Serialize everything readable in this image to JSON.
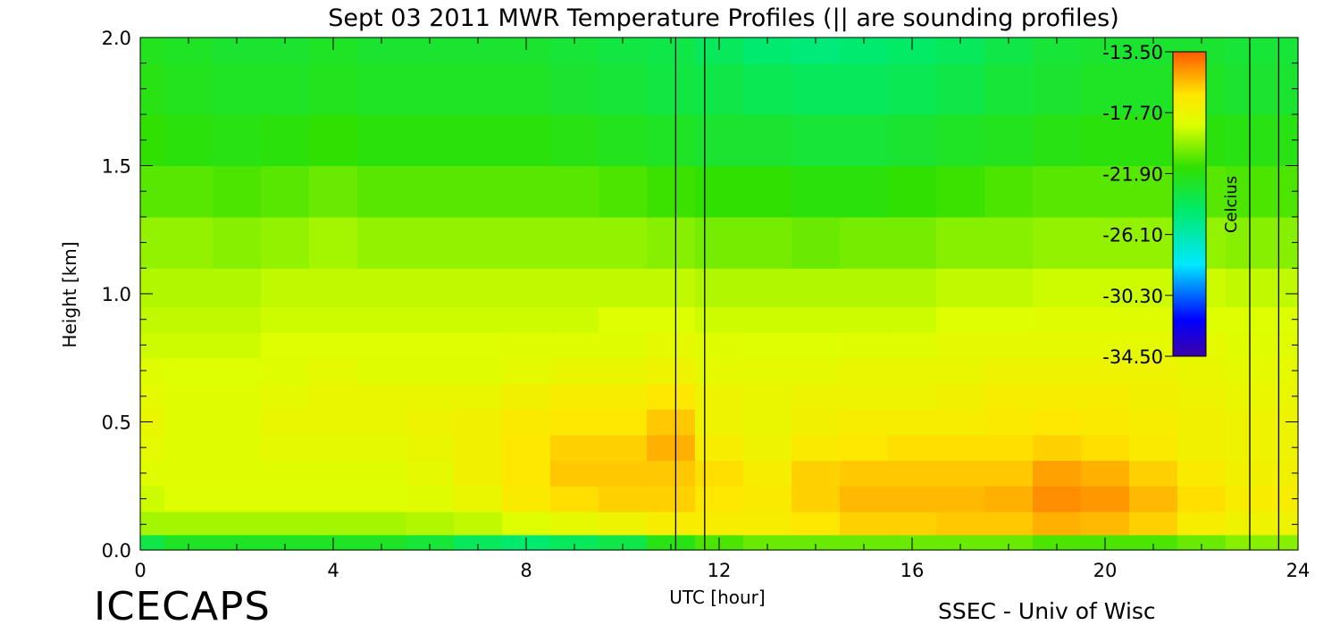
{
  "chart_data": {
    "type": "heatmap",
    "title": "Sept 03 2011 MWR Temperature Profiles (|| are sounding profiles)",
    "xlabel": "UTC [hour]",
    "ylabel": "Height [km]",
    "xlim": [
      0,
      24
    ],
    "ylim": [
      0,
      2.0
    ],
    "x_ticks": [
      "0",
      "4",
      "8",
      "12",
      "16",
      "20",
      "24"
    ],
    "y_ticks": [
      "0.0",
      "0.5",
      "1.0",
      "1.5",
      "2.0"
    ],
    "colorbar": {
      "label": "Celcius",
      "range": [
        -34.5,
        -13.5
      ],
      "ticks": [
        "-13.50",
        "-17.70",
        "-21.90",
        "-26.10",
        "-30.30",
        "-34.50"
      ]
    },
    "sounding_times": [
      11.1,
      11.7,
      23.0,
      23.6
    ],
    "x": [
      0,
      1,
      2,
      3,
      4,
      5,
      6,
      7,
      8,
      9,
      10,
      11,
      12,
      13,
      14,
      15,
      16,
      17,
      18,
      19,
      20,
      21,
      22,
      23
    ],
    "heights": [
      0.02,
      0.1,
      0.2,
      0.3,
      0.4,
      0.5,
      0.6,
      0.7,
      0.8,
      0.9,
      1.0,
      1.2,
      1.4,
      1.6,
      1.8,
      2.0
    ],
    "values": [
      [
        -23.5,
        -22.5,
        -22.5,
        -22.5,
        -22.5,
        -22.5,
        -23.0,
        -24.0,
        -24.5,
        -24.0,
        -23.5,
        -22.0,
        -21.0,
        -20.5,
        -20.5,
        -20.5,
        -20.5,
        -20.5,
        -20.5,
        -21.0,
        -21.0,
        -21.0,
        -20.5,
        -20.0
      ],
      [
        -19.5,
        -19.5,
        -19.5,
        -19.5,
        -19.5,
        -19.5,
        -19.3,
        -19.0,
        -18.5,
        -18.0,
        -17.5,
        -17.0,
        -17.0,
        -17.0,
        -16.5,
        -16.0,
        -16.0,
        -15.8,
        -15.8,
        -15.3,
        -15.5,
        -16.0,
        -17.0,
        -17.5
      ],
      [
        -18.8,
        -18.5,
        -18.5,
        -18.5,
        -18.5,
        -18.5,
        -18.3,
        -17.8,
        -16.8,
        -16.3,
        -16.0,
        -16.0,
        -16.5,
        -16.8,
        -16.0,
        -15.5,
        -15.5,
        -15.5,
        -15.3,
        -14.6,
        -14.8,
        -15.5,
        -16.3,
        -17.0
      ],
      [
        -18.3,
        -18.3,
        -18.3,
        -18.3,
        -18.3,
        -18.3,
        -18.0,
        -17.3,
        -16.5,
        -15.8,
        -15.8,
        -15.8,
        -16.3,
        -17.0,
        -16.0,
        -15.8,
        -15.8,
        -15.8,
        -15.8,
        -15.0,
        -15.3,
        -16.0,
        -16.8,
        -17.3
      ],
      [
        -18.0,
        -18.3,
        -18.3,
        -18.0,
        -18.0,
        -18.0,
        -17.8,
        -17.3,
        -16.5,
        -16.0,
        -16.0,
        -15.3,
        -17.0,
        -17.5,
        -16.8,
        -16.5,
        -16.3,
        -16.3,
        -16.3,
        -16.0,
        -16.3,
        -16.8,
        -17.3,
        -17.5
      ],
      [
        -17.8,
        -18.3,
        -18.3,
        -17.8,
        -17.8,
        -17.8,
        -17.5,
        -17.3,
        -16.8,
        -16.5,
        -16.5,
        -15.8,
        -17.5,
        -17.8,
        -17.3,
        -17.0,
        -17.0,
        -17.0,
        -16.8,
        -16.5,
        -16.8,
        -17.0,
        -17.3,
        -17.5
      ],
      [
        -18.0,
        -18.3,
        -18.3,
        -18.0,
        -17.8,
        -17.8,
        -17.8,
        -17.8,
        -17.3,
        -17.0,
        -17.0,
        -16.5,
        -17.5,
        -17.8,
        -17.5,
        -17.5,
        -17.5,
        -17.3,
        -17.0,
        -17.0,
        -17.0,
        -17.3,
        -17.5,
        -17.8
      ],
      [
        -18.3,
        -18.5,
        -18.5,
        -18.3,
        -18.0,
        -18.3,
        -18.3,
        -18.3,
        -18.0,
        -17.8,
        -17.8,
        -17.5,
        -18.0,
        -18.0,
        -18.0,
        -17.8,
        -17.8,
        -17.8,
        -17.5,
        -17.5,
        -17.5,
        -17.5,
        -17.8,
        -18.0
      ],
      [
        -18.8,
        -18.8,
        -18.8,
        -18.5,
        -18.5,
        -18.5,
        -18.5,
        -18.5,
        -18.3,
        -18.3,
        -18.3,
        -18.0,
        -18.3,
        -18.5,
        -18.5,
        -18.3,
        -18.3,
        -18.0,
        -18.0,
        -18.0,
        -18.0,
        -18.0,
        -18.0,
        -18.3
      ],
      [
        -19.0,
        -19.0,
        -19.0,
        -18.8,
        -18.8,
        -18.8,
        -18.8,
        -18.8,
        -18.8,
        -18.8,
        -18.5,
        -18.5,
        -18.8,
        -18.8,
        -18.8,
        -18.8,
        -18.8,
        -18.5,
        -18.5,
        -18.3,
        -18.3,
        -18.3,
        -18.5,
        -18.5
      ],
      [
        -19.3,
        -19.3,
        -19.3,
        -19.0,
        -19.0,
        -19.0,
        -19.0,
        -19.0,
        -19.0,
        -19.0,
        -19.0,
        -19.0,
        -19.3,
        -19.3,
        -19.3,
        -19.3,
        -19.3,
        -19.0,
        -19.0,
        -18.8,
        -18.8,
        -18.8,
        -18.8,
        -19.0
      ],
      [
        -19.8,
        -19.8,
        -20.0,
        -19.8,
        -19.5,
        -19.8,
        -19.8,
        -19.8,
        -19.8,
        -19.8,
        -19.8,
        -20.0,
        -20.3,
        -20.3,
        -20.5,
        -20.3,
        -20.3,
        -20.0,
        -20.0,
        -19.8,
        -19.8,
        -19.8,
        -19.8,
        -20.0
      ],
      [
        -20.8,
        -20.8,
        -21.0,
        -20.8,
        -20.5,
        -20.8,
        -20.8,
        -20.8,
        -20.8,
        -20.8,
        -21.0,
        -21.3,
        -21.5,
        -21.5,
        -21.8,
        -21.8,
        -21.5,
        -21.3,
        -21.0,
        -20.8,
        -20.8,
        -20.8,
        -20.8,
        -21.0
      ],
      [
        -21.5,
        -21.8,
        -22.0,
        -21.8,
        -21.5,
        -21.8,
        -21.8,
        -21.8,
        -21.8,
        -22.0,
        -22.3,
        -22.5,
        -22.8,
        -22.8,
        -23.0,
        -23.0,
        -22.8,
        -22.5,
        -22.3,
        -22.0,
        -21.8,
        -21.8,
        -21.8,
        -22.0
      ],
      [
        -22.0,
        -22.3,
        -22.5,
        -22.5,
        -22.3,
        -22.5,
        -22.5,
        -22.5,
        -22.5,
        -22.8,
        -23.0,
        -23.3,
        -23.5,
        -23.8,
        -24.0,
        -24.0,
        -23.8,
        -23.5,
        -23.0,
        -22.8,
        -22.5,
        -22.5,
        -22.5,
        -22.8
      ],
      [
        -22.3,
        -22.5,
        -22.8,
        -22.8,
        -22.5,
        -22.8,
        -22.8,
        -22.8,
        -22.8,
        -23.0,
        -23.3,
        -23.5,
        -24.0,
        -24.5,
        -24.8,
        -24.5,
        -24.3,
        -24.0,
        -23.5,
        -23.0,
        -22.8,
        -22.8,
        -22.8,
        -23.0
      ]
    ]
  },
  "footer": {
    "brand": "ICECAPS",
    "credit": "SSEC - Univ of Wisc"
  }
}
